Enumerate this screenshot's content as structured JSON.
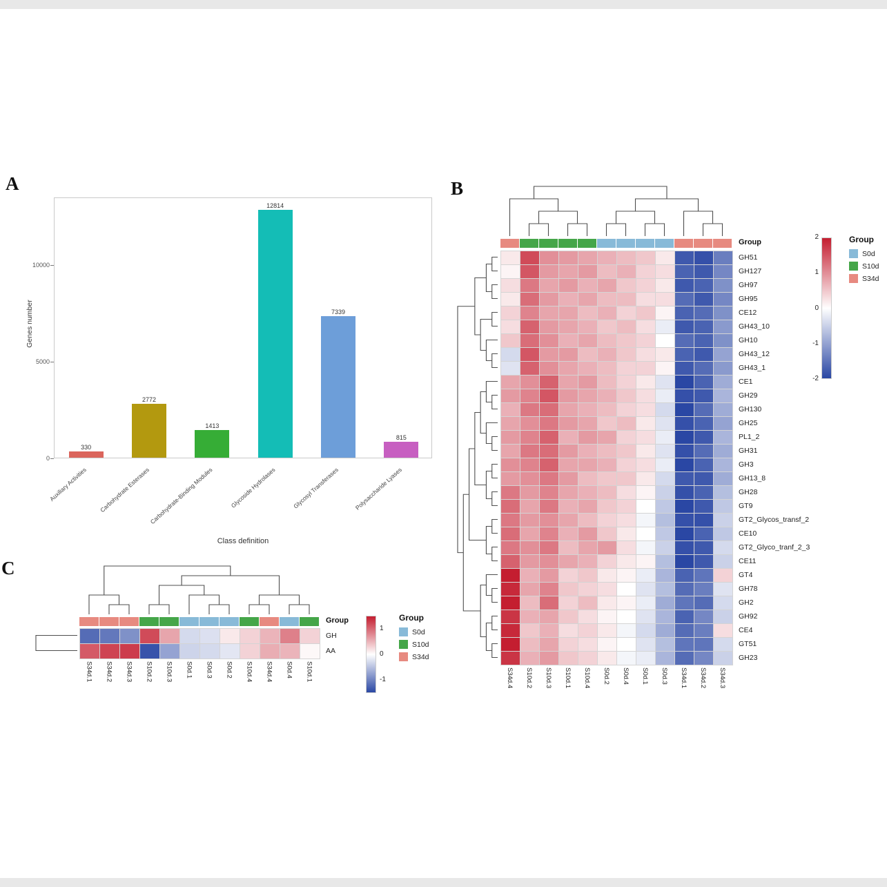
{
  "panels": {
    "a": {
      "label": "A"
    },
    "b": {
      "label": "B",
      "annotation_label": "Group"
    },
    "c": {
      "label": "C",
      "annotation_label": "Group"
    }
  },
  "group_colors": {
    "S0d": "#88bad8",
    "S10d": "#45a649",
    "S34d": "#e78a80"
  },
  "heat_scale": {
    "pos": "#c41e30",
    "neg": "#2a47a4"
  },
  "chart_data": [
    {
      "type": "bar",
      "title": "",
      "xlabel": "Class definition",
      "ylabel": "Genes number",
      "categories": [
        "Auxiliary Activities",
        "Carbohydrate Esterases",
        "Carbohydrate-Binding Modules",
        "Glycoside Hydrolases",
        "Glycosyl Transferases",
        "Polysaccharide Lyases"
      ],
      "values": [
        330,
        2772,
        1413,
        12814,
        7339,
        815
      ],
      "colors": [
        "#db655c",
        "#b3990f",
        "#36ad36",
        "#14bdb6",
        "#6d9ed9",
        "#c75fc1"
      ],
      "ylim": [
        0,
        13500
      ],
      "yticks": [
        0,
        5000,
        10000
      ],
      "grid": false,
      "legend_position": "none"
    },
    {
      "type": "heatmap",
      "title": "",
      "rows": [
        "GH51",
        "GH127",
        "GH97",
        "GH95",
        "CE12",
        "GH43_10",
        "GH10",
        "GH43_12",
        "GH43_1",
        "CE1",
        "GH29",
        "GH130",
        "GH25",
        "PL1_2",
        "GH31",
        "GH3",
        "GH13_8",
        "GH28",
        "GT9",
        "GT2_Glycos_transf_2",
        "CE10",
        "GT2_Glyco_tranf_2_3",
        "CE11",
        "GT4",
        "GH78",
        "GH2",
        "GH92",
        "CE4",
        "GT51",
        "GH23"
      ],
      "columns": [
        "S34d.4",
        "S10d.2",
        "S10d.3",
        "S10d.1",
        "S10d.4",
        "S0d.2",
        "S0d.4",
        "S0d.1",
        "S0d.3",
        "S34d.1",
        "S34d.2",
        "S34d.3"
      ],
      "column_groups": [
        "S34d",
        "S10d",
        "S10d",
        "S10d",
        "S10d",
        "S0d",
        "S0d",
        "S0d",
        "S0d",
        "S34d",
        "S34d",
        "S34d"
      ],
      "values": [
        [
          0.2,
          1.6,
          1.0,
          0.9,
          0.8,
          0.7,
          0.6,
          0.5,
          0.2,
          -1.8,
          -1.9,
          -1.4
        ],
        [
          0.1,
          1.5,
          0.9,
          0.8,
          0.9,
          0.6,
          0.7,
          0.4,
          0.3,
          -1.7,
          -1.8,
          -1.3
        ],
        [
          0.3,
          1.2,
          0.8,
          0.9,
          0.7,
          0.8,
          0.5,
          0.4,
          0.2,
          -1.8,
          -1.7,
          -1.2
        ],
        [
          0.2,
          1.3,
          0.9,
          0.7,
          0.8,
          0.6,
          0.6,
          0.3,
          0.3,
          -1.6,
          -1.8,
          -1.3
        ],
        [
          0.4,
          1.1,
          0.8,
          0.8,
          0.6,
          0.7,
          0.4,
          0.5,
          0.1,
          -1.7,
          -1.6,
          -1.2
        ],
        [
          0.3,
          1.4,
          0.9,
          0.8,
          0.7,
          0.5,
          0.6,
          0.3,
          -0.2,
          -1.8,
          -1.7,
          -1.1
        ],
        [
          0.5,
          1.3,
          1.0,
          0.7,
          0.8,
          0.6,
          0.5,
          0.4,
          0.0,
          -1.6,
          -1.7,
          -1.2
        ],
        [
          -0.4,
          1.5,
          0.9,
          0.9,
          0.6,
          0.7,
          0.5,
          0.3,
          0.2,
          -1.7,
          -1.8,
          -1.0
        ],
        [
          -0.3,
          1.4,
          1.0,
          0.8,
          0.7,
          0.6,
          0.4,
          0.4,
          0.1,
          -1.8,
          -1.6,
          -1.1
        ],
        [
          0.8,
          1.0,
          1.4,
          0.8,
          0.9,
          0.6,
          0.4,
          0.2,
          -0.3,
          -2.0,
          -1.7,
          -0.9
        ],
        [
          0.9,
          1.1,
          1.5,
          0.9,
          0.8,
          0.7,
          0.5,
          0.3,
          -0.2,
          -1.9,
          -1.8,
          -0.8
        ],
        [
          0.7,
          1.2,
          1.3,
          0.8,
          0.7,
          0.6,
          0.4,
          0.3,
          -0.4,
          -2.0,
          -1.6,
          -0.9
        ],
        [
          0.8,
          1.0,
          1.2,
          0.9,
          0.8,
          0.5,
          0.6,
          0.2,
          -0.3,
          -1.9,
          -1.7,
          -1.0
        ],
        [
          0.9,
          1.1,
          1.4,
          0.7,
          0.9,
          0.8,
          0.4,
          0.3,
          -0.2,
          -2.0,
          -1.8,
          -0.8
        ],
        [
          0.8,
          1.2,
          1.3,
          0.9,
          0.7,
          0.6,
          0.5,
          0.2,
          -0.3,
          -1.9,
          -1.6,
          -0.9
        ],
        [
          1.0,
          1.1,
          1.4,
          0.8,
          0.8,
          0.7,
          0.4,
          0.3,
          -0.2,
          -2.0,
          -1.7,
          -0.8
        ],
        [
          0.9,
          1.0,
          1.2,
          0.9,
          0.6,
          0.5,
          0.5,
          0.2,
          -0.4,
          -1.8,
          -1.8,
          -0.9
        ],
        [
          1.2,
          0.9,
          1.1,
          0.8,
          0.7,
          0.6,
          0.3,
          0.1,
          -0.5,
          -1.9,
          -1.7,
          -0.7
        ],
        [
          1.3,
          0.8,
          1.2,
          0.7,
          0.8,
          0.5,
          0.4,
          0.0,
          -0.6,
          -2.0,
          -1.8,
          -0.6
        ],
        [
          1.2,
          0.9,
          1.0,
          0.8,
          0.6,
          0.4,
          0.3,
          -0.1,
          -0.7,
          -1.9,
          -1.9,
          -0.5
        ],
        [
          1.3,
          0.8,
          1.1,
          0.7,
          0.9,
          0.5,
          0.2,
          0.0,
          -0.6,
          -2.0,
          -1.7,
          -0.6
        ],
        [
          1.2,
          1.0,
          1.2,
          0.6,
          0.8,
          0.9,
          0.3,
          -0.1,
          -0.5,
          -1.9,
          -1.8,
          -0.4
        ],
        [
          1.4,
          0.9,
          1.0,
          0.8,
          0.7,
          0.4,
          0.2,
          0.1,
          -0.7,
          -2.0,
          -1.8,
          -0.5
        ],
        [
          2.0,
          0.7,
          0.9,
          0.4,
          0.5,
          0.2,
          0.1,
          -0.2,
          -0.8,
          -1.7,
          -1.5,
          0.4
        ],
        [
          1.9,
          0.8,
          1.1,
          0.5,
          0.4,
          0.3,
          0.0,
          -0.3,
          -0.7,
          -1.6,
          -1.4,
          -0.3
        ],
        [
          2.0,
          0.6,
          1.3,
          0.4,
          0.6,
          0.2,
          0.1,
          -0.2,
          -0.9,
          -1.5,
          -1.6,
          -0.4
        ],
        [
          1.8,
          0.7,
          0.8,
          0.5,
          0.3,
          0.1,
          0.0,
          -0.3,
          -0.8,
          -1.7,
          -1.3,
          -0.5
        ],
        [
          1.9,
          0.5,
          0.7,
          0.3,
          0.4,
          0.2,
          -0.1,
          -0.4,
          -0.9,
          -1.6,
          -1.4,
          0.3
        ],
        [
          2.0,
          0.6,
          0.8,
          0.4,
          0.3,
          0.1,
          0.0,
          -0.3,
          -0.7,
          -1.5,
          -1.5,
          -0.4
        ],
        [
          1.8,
          0.7,
          0.9,
          0.5,
          0.4,
          0.2,
          -0.1,
          -0.2,
          -0.8,
          -1.6,
          -1.3,
          -0.5
        ]
      ],
      "vlim": [
        -2,
        2
      ],
      "colorbar_ticks": [
        2,
        1,
        0,
        -1,
        -2
      ],
      "legend": {
        "title": "Group",
        "items": [
          "S0d",
          "S10d",
          "S34d"
        ]
      },
      "col_tree": [
        [
          0,
          [
            [
              1,
              2
            ],
            [
              3,
              4
            ]
          ]
        ],
        [
          [
            [
              5,
              6
            ],
            [
              7,
              8
            ]
          ],
          [
            9,
            [
              10,
              11
            ]
          ]
        ]
      ],
      "row_tree": [
        [
          [
            [
              0,
              1
            ],
            [
              2,
              3
            ]
          ],
          [
            [
              4,
              5
            ],
            [
              6,
              [
                7,
                8
              ]
            ]
          ]
        ],
        [
          [
            [
              [
                [
                  9,
                  [
                    10,
                    11
                  ]
                ],
                [
                  12,
                  [
                    13,
                    14
                  ]
                ]
              ],
              [
                [
                  15,
                  16
                ],
                [
                  17,
                  18
                ]
              ]
            ],
            [
              [
                19,
                20
              ],
              [
                21,
                22
              ]
            ]
          ],
          [
            [
              23,
              [
                24,
                25
              ]
            ],
            [
              [
                26,
                27
              ],
              [
                28,
                29
              ]
            ]
          ]
        ]
      ]
    },
    {
      "type": "heatmap",
      "title": "",
      "rows": [
        "GH",
        "AA"
      ],
      "columns": [
        "S34d.1",
        "S34d.2",
        "S34d.3",
        "S10d.2",
        "S10d.3",
        "S0d.1",
        "S0d.3",
        "S0d.2",
        "S10d.4",
        "S34d.4",
        "S0d.4",
        "S10d.1"
      ],
      "column_groups": [
        "S34d",
        "S34d",
        "S34d",
        "S10d",
        "S10d",
        "S0d",
        "S0d",
        "S0d",
        "S10d",
        "S34d",
        "S0d",
        "S10d"
      ],
      "values": [
        [
          -1.2,
          -1.1,
          -0.9,
          1.2,
          0.6,
          -0.3,
          -0.25,
          0.15,
          0.3,
          0.5,
          0.85,
          0.3
        ],
        [
          1.1,
          1.25,
          1.3,
          -1.4,
          -0.75,
          -0.35,
          -0.3,
          -0.2,
          0.3,
          0.55,
          0.5,
          0.05
        ]
      ],
      "vlim": [
        -1.5,
        1.5
      ],
      "colorbar_ticks": [
        1,
        0,
        -1
      ],
      "legend": {
        "title": "Group",
        "items": [
          "S0d",
          "S10d",
          "S34d"
        ]
      },
      "col_tree": [
        [
          0,
          [
            1,
            2
          ]
        ],
        [
          [
            [
              3,
              4
            ],
            [
              5,
              [
                6,
                7
              ]
            ]
          ],
          [
            [
              8,
              9
            ],
            [
              10,
              11
            ]
          ]
        ]
      ],
      "row_tree": [
        0,
        1
      ]
    }
  ]
}
